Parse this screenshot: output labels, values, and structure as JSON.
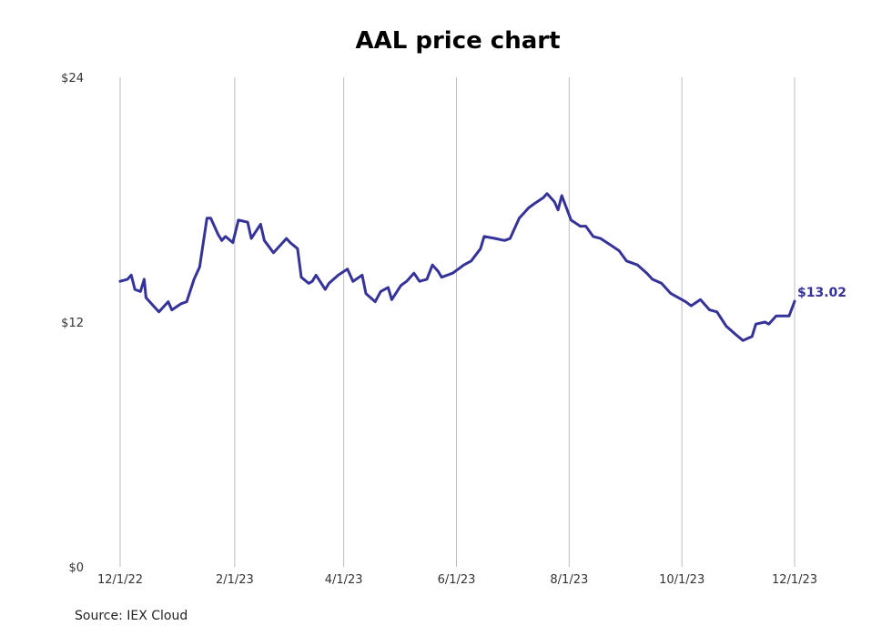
{
  "chart_data": {
    "type": "line",
    "title": "AAL price chart",
    "source": "Source: IEX Cloud",
    "xlabel": "",
    "ylabel": "",
    "x_ticks": [
      "12/1/22",
      "2/1/23",
      "4/1/23",
      "6/1/23",
      "8/1/23",
      "10/1/23",
      "12/1/23"
    ],
    "y_ticks": [
      "$0",
      "$12",
      "$24"
    ],
    "ylim": [
      0,
      24
    ],
    "xlim": [
      "2022-12-01",
      "2023-12-01"
    ],
    "grid": "vertical",
    "line_color": "#35339a",
    "last_value_label": "$13.02",
    "series": [
      {
        "x": [
          "2022-12-01",
          "2022-12-05",
          "2022-12-07",
          "2022-12-09",
          "2022-12-12",
          "2022-12-14",
          "2022-12-15",
          "2022-12-19",
          "2022-12-22",
          "2022-12-27",
          "2022-12-29",
          "2023-01-03",
          "2023-01-06",
          "2023-01-10",
          "2023-01-13",
          "2023-01-17",
          "2023-01-19",
          "2023-01-23",
          "2023-01-25",
          "2023-01-27",
          "2023-01-31",
          "2023-02-03",
          "2023-02-08",
          "2023-02-10",
          "2023-02-15",
          "2023-02-17",
          "2023-02-22",
          "2023-02-24",
          "2023-03-01",
          "2023-03-03",
          "2023-03-07",
          "2023-03-09",
          "2023-03-13",
          "2023-03-15",
          "2023-03-17",
          "2023-03-22",
          "2023-03-24",
          "2023-03-29",
          "2023-04-03",
          "2023-04-06",
          "2023-04-11",
          "2023-04-13",
          "2023-04-18",
          "2023-04-21",
          "2023-04-25",
          "2023-04-27",
          "2023-05-02",
          "2023-05-05",
          "2023-05-09",
          "2023-05-12",
          "2023-05-16",
          "2023-05-19",
          "2023-05-22",
          "2023-05-24",
          "2023-05-30",
          "2023-06-05",
          "2023-06-09",
          "2023-06-14",
          "2023-06-16",
          "2023-06-22",
          "2023-06-27",
          "2023-06-30",
          "2023-07-05",
          "2023-07-10",
          "2023-07-13",
          "2023-07-18",
          "2023-07-20",
          "2023-07-24",
          "2023-07-26",
          "2023-07-28",
          "2023-08-02",
          "2023-08-07",
          "2023-08-10",
          "2023-08-14",
          "2023-08-18",
          "2023-08-23",
          "2023-08-28",
          "2023-09-01",
          "2023-09-07",
          "2023-09-12",
          "2023-09-15",
          "2023-09-20",
          "2023-09-25",
          "2023-09-29",
          "2023-10-03",
          "2023-10-06",
          "2023-10-11",
          "2023-10-16",
          "2023-10-20",
          "2023-10-25",
          "2023-10-30",
          "2023-11-03",
          "2023-11-08",
          "2023-11-10",
          "2023-11-15",
          "2023-11-17",
          "2023-11-21",
          "2023-11-24",
          "2023-11-28",
          "2023-12-01"
        ],
        "y": [
          14.0,
          14.1,
          14.3,
          13.6,
          13.5,
          14.1,
          13.2,
          12.8,
          12.5,
          13.0,
          12.6,
          12.9,
          13.0,
          14.1,
          14.7,
          17.1,
          17.1,
          16.3,
          16.0,
          16.2,
          15.9,
          17.0,
          16.9,
          16.1,
          16.8,
          16.0,
          15.4,
          15.6,
          16.1,
          15.9,
          15.6,
          14.2,
          13.9,
          14.0,
          14.3,
          13.6,
          13.9,
          14.3,
          14.6,
          14.0,
          14.3,
          13.4,
          13.0,
          13.5,
          13.7,
          13.1,
          13.8,
          14.0,
          14.4,
          14.0,
          14.1,
          14.8,
          14.5,
          14.2,
          14.4,
          14.8,
          15.0,
          15.6,
          16.2,
          16.1,
          16.0,
          16.1,
          17.1,
          17.6,
          17.8,
          18.1,
          18.3,
          17.9,
          17.5,
          18.2,
          17.0,
          16.7,
          16.7,
          16.2,
          16.1,
          15.8,
          15.5,
          15.0,
          14.8,
          14.4,
          14.1,
          13.9,
          13.4,
          13.2,
          13.0,
          12.8,
          13.1,
          12.6,
          12.5,
          11.8,
          11.4,
          11.1,
          11.3,
          11.9,
          12.0,
          11.9,
          12.3,
          12.3,
          12.3,
          13.02
        ]
      }
    ]
  }
}
